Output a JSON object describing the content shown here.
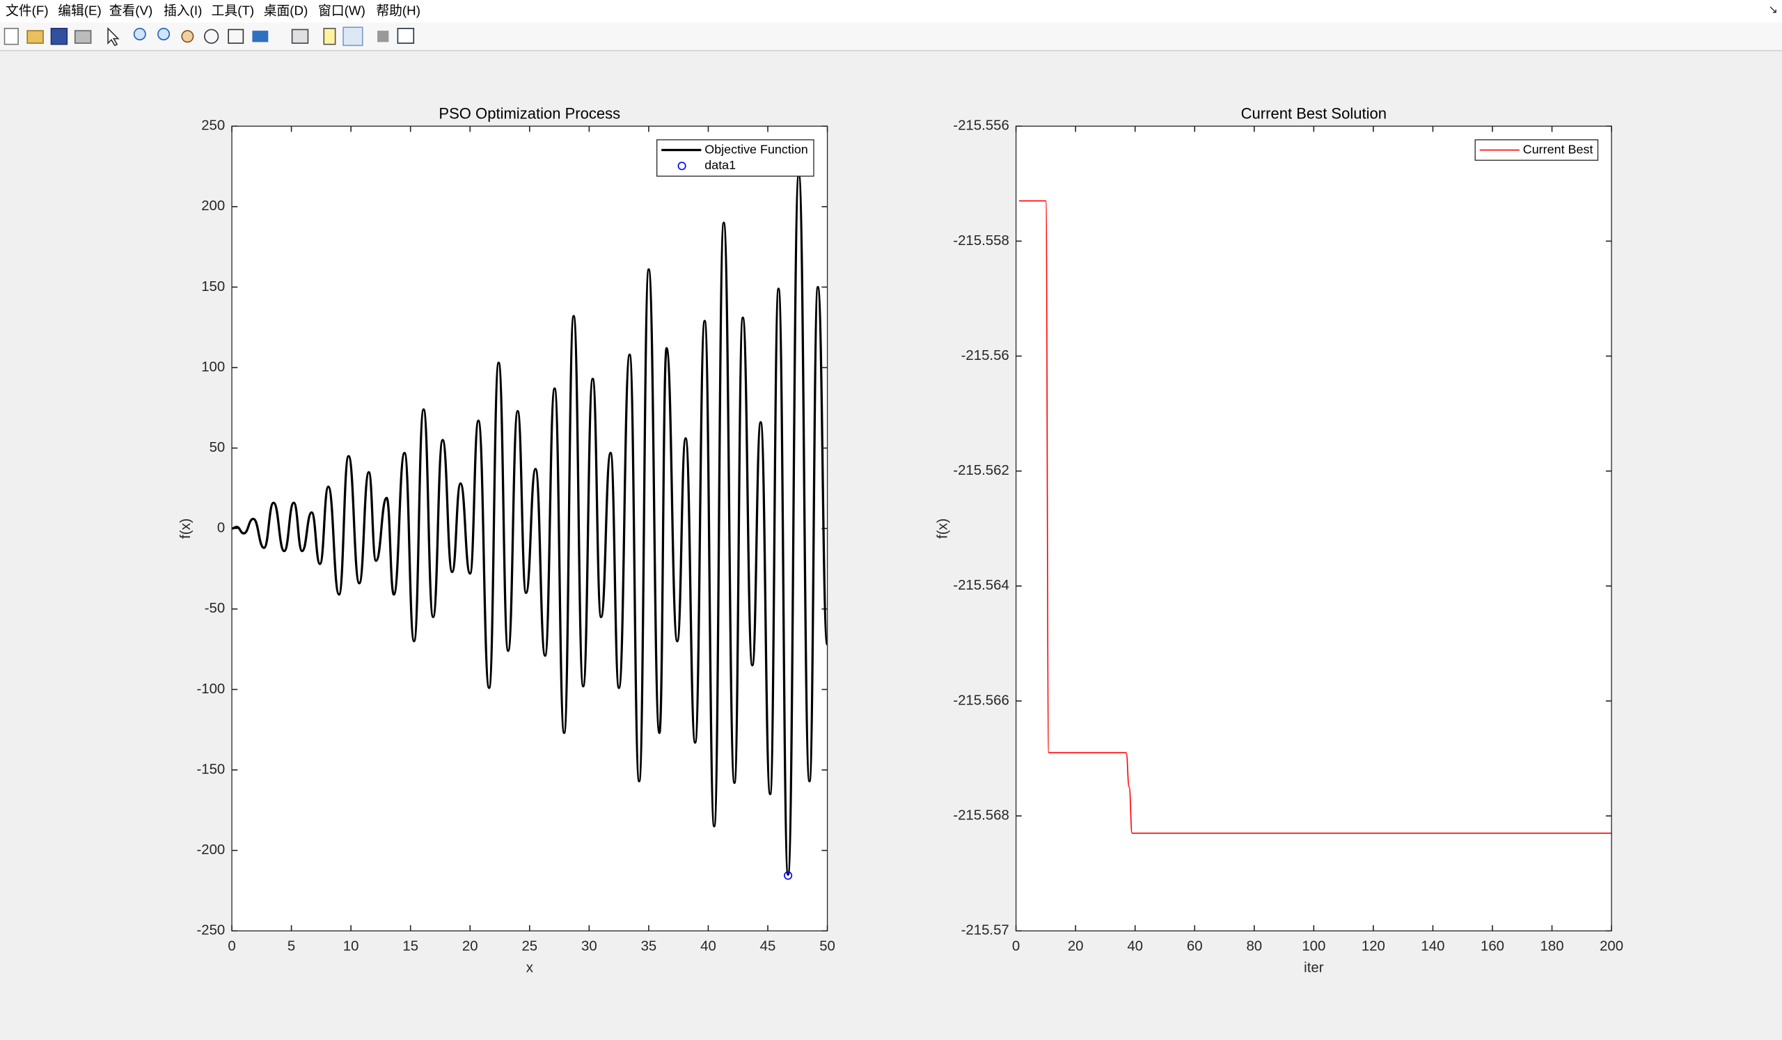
{
  "menu": [
    "文件(F)",
    "编辑(E)",
    "查看(V)",
    "插入(I)",
    "工具(T)",
    "桌面(D)",
    "窗口(W)",
    "帮助(H)"
  ],
  "chart_data": [
    {
      "type": "line",
      "title": "PSO Optimization Process",
      "xlabel": "x",
      "ylabel": "f(x)",
      "xlim": [
        0,
        50
      ],
      "ylim": [
        -250,
        250
      ],
      "xticks": [
        0,
        5,
        10,
        15,
        20,
        25,
        30,
        35,
        40,
        45,
        50
      ],
      "yticks": [
        -250,
        -200,
        -150,
        -100,
        -50,
        0,
        50,
        100,
        150,
        200,
        250
      ],
      "legend": "northeast",
      "series": [
        {
          "name": "Objective Function",
          "color": "#000000",
          "style": "line",
          "x": [
            0,
            0.4,
            1.0,
            1.8,
            2.7,
            3.5,
            4.4,
            5.2,
            5.9,
            6.7,
            7.4,
            8.1,
            9.0,
            9.8,
            10.7,
            11.5,
            12.1,
            13.0,
            13.6,
            14.5,
            15.3,
            16.1,
            16.9,
            17.7,
            18.5,
            19.2,
            20.0,
            20.7,
            21.6,
            22.4,
            23.2,
            24.0,
            24.7,
            25.5,
            26.3,
            27.1,
            27.9,
            28.7,
            29.5,
            30.3,
            31.0,
            31.8,
            32.5,
            33.4,
            34.2,
            35.0,
            35.9,
            36.5,
            37.4,
            38.1,
            38.9,
            39.7,
            40.5,
            41.3,
            42.2,
            42.9,
            43.7,
            44.4,
            45.2,
            45.9,
            46.7,
            47.6,
            48.5,
            49.2,
            50
          ],
          "values": [
            0,
            1,
            -3,
            6,
            -12,
            16,
            -14,
            16,
            -14,
            10,
            -22,
            26,
            -41,
            45,
            -34,
            35,
            -20,
            19,
            -41,
            47,
            -70,
            74,
            -55,
            55,
            -27,
            28,
            -28,
            67,
            -99,
            103,
            -76,
            73,
            -40,
            37,
            -79,
            87,
            -127,
            132,
            -98,
            93,
            -55,
            47,
            -99,
            108,
            -157,
            161,
            -127,
            112,
            -70,
            56,
            -133,
            129,
            -185,
            190,
            -158,
            131,
            -85,
            66,
            -165,
            149,
            -215,
            220,
            -157,
            150,
            -72
          ]
        },
        {
          "name": "data1",
          "color": "#0000ff",
          "style": "scatter",
          "x": [
            46.7
          ],
          "values": [
            -215.6
          ]
        }
      ]
    },
    {
      "type": "line",
      "title": "Current Best Solution",
      "xlabel": "iter",
      "ylabel": "f(x)",
      "xlim": [
        0,
        200
      ],
      "ylim": [
        -215.57,
        -215.556
      ],
      "xticks": [
        0,
        20,
        40,
        60,
        80,
        100,
        120,
        140,
        160,
        180,
        200
      ],
      "yticks": [
        -215.57,
        -215.568,
        -215.566,
        -215.564,
        -215.562,
        -215.56,
        -215.558,
        -215.556
      ],
      "legend": "northeast",
      "series": [
        {
          "name": "Current Best",
          "color": "#ff0000",
          "style": "line",
          "x": [
            1,
            10,
            11,
            37,
            38,
            39,
            200
          ],
          "values": [
            -215.5573,
            -215.5573,
            -215.5669,
            -215.5669,
            -215.5675,
            -215.5683,
            -215.5683
          ]
        }
      ]
    }
  ]
}
